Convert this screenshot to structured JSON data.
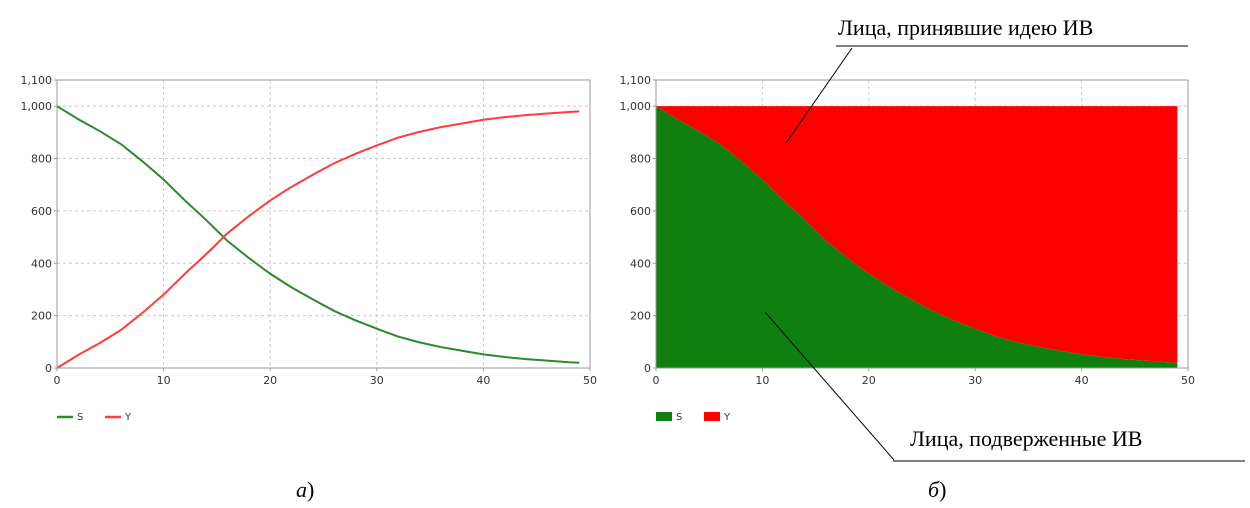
{
  "colors": {
    "S": "#2a8a2a",
    "Y": "#ff3b3b",
    "S_fill": "#0f7f0f",
    "Y_fill": "#ff0000"
  },
  "annotations": {
    "adopted": "Лица, принявшие идею ИВ",
    "susceptible": "Лица, подверженные ИВ"
  },
  "panel_labels": {
    "a": "а",
    "b": "б"
  },
  "chart_data": [
    {
      "type": "line",
      "x": [
        0,
        2,
        4,
        6,
        8,
        10,
        12,
        14,
        16,
        18,
        20,
        22,
        24,
        26,
        28,
        30,
        32,
        34,
        36,
        38,
        40,
        42,
        44,
        46,
        48,
        49
      ],
      "series": [
        {
          "name": "S",
          "values": [
            1000,
            950,
            905,
            855,
            790,
            720,
            640,
            565,
            485,
            420,
            360,
            308,
            262,
            218,
            182,
            150,
            120,
            98,
            80,
            66,
            52,
            42,
            34,
            28,
            22,
            20
          ]
        },
        {
          "name": "Y",
          "values": [
            0,
            50,
            95,
            145,
            210,
            280,
            360,
            435,
            515,
            580,
            640,
            692,
            738,
            782,
            818,
            850,
            880,
            902,
            920,
            934,
            948,
            958,
            966,
            972,
            978,
            980
          ]
        }
      ],
      "xlim": [
        0,
        50
      ],
      "ylim": [
        0,
        1100
      ],
      "xticks": [
        "0",
        "10",
        "20",
        "30",
        "40",
        "50"
      ],
      "yticks": [
        "0",
        "200",
        "400",
        "600",
        "800",
        "1,000",
        "1,100"
      ],
      "grid": true,
      "legend": "bottom-left"
    },
    {
      "type": "area",
      "x": [
        0,
        2,
        4,
        6,
        8,
        10,
        12,
        14,
        16,
        18,
        20,
        22,
        24,
        26,
        28,
        30,
        32,
        34,
        36,
        38,
        40,
        42,
        44,
        46,
        48,
        49
      ],
      "series": [
        {
          "name": "S",
          "values": [
            1000,
            950,
            905,
            855,
            790,
            720,
            640,
            565,
            485,
            420,
            360,
            308,
            262,
            218,
            182,
            150,
            120,
            98,
            80,
            66,
            52,
            42,
            34,
            28,
            22,
            20
          ]
        },
        {
          "name": "Y",
          "values": [
            0,
            50,
            95,
            145,
            210,
            280,
            360,
            435,
            515,
            580,
            640,
            692,
            738,
            782,
            818,
            850,
            880,
            902,
            920,
            934,
            948,
            958,
            966,
            972,
            978,
            980
          ]
        }
      ],
      "stacked": true,
      "xlim": [
        0,
        50
      ],
      "ylim": [
        0,
        1100
      ],
      "xticks": [
        "0",
        "10",
        "20",
        "30",
        "40",
        "50"
      ],
      "yticks": [
        "0",
        "200",
        "400",
        "600",
        "800",
        "1,000",
        "1,100"
      ],
      "grid": true,
      "legend": "bottom-left"
    }
  ]
}
